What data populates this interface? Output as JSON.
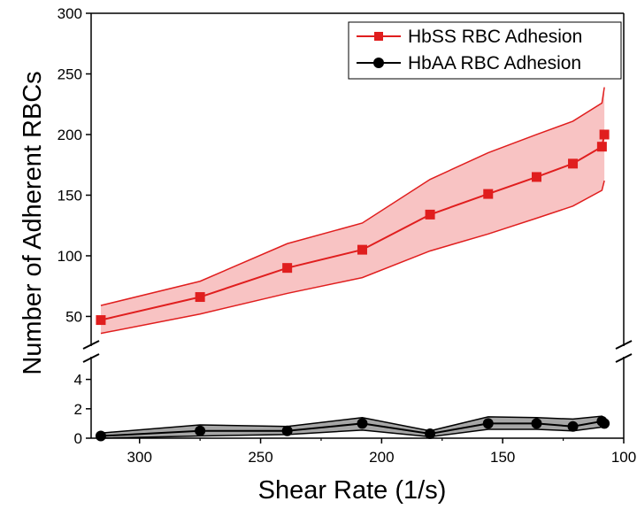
{
  "chart_data": {
    "type": "line",
    "title": "",
    "xlabel": "Shear Rate (1/s)",
    "ylabel": "Number of Adherent RBCs",
    "x_reversed": true,
    "xlim": [
      320,
      100
    ],
    "xticks": [
      300,
      250,
      200,
      150,
      100
    ],
    "y_axis_break": true,
    "upper_panel": {
      "ylim": [
        35,
        300
      ],
      "yticks": [
        50,
        100,
        150,
        200,
        250,
        300
      ]
    },
    "lower_panel": {
      "ylim": [
        0,
        5
      ],
      "yticks": [
        0,
        2,
        4
      ]
    },
    "legend_position": "top-right",
    "x": [
      316,
      275,
      239,
      208,
      180,
      156,
      136,
      121,
      109,
      108
    ],
    "series": [
      {
        "name": "HbSS RBC Adhesion",
        "color": "#e01e1e",
        "band_color": "#f7b9b9",
        "marker": "square",
        "panel": "upper",
        "values": [
          47,
          66,
          90,
          105,
          134,
          151,
          165,
          176,
          190,
          200
        ],
        "upper": [
          59,
          79,
          110,
          127,
          163,
          185,
          200,
          211,
          226,
          239
        ],
        "lower": [
          36,
          52,
          69,
          82,
          104,
          118,
          131,
          141,
          154,
          162
        ]
      },
      {
        "name": "HbAA RBC Adhesion",
        "color": "#000000",
        "band_color": "#a6a6a6",
        "marker": "circle",
        "panel": "lower",
        "values": [
          0.15,
          0.5,
          0.5,
          1.0,
          0.3,
          1.0,
          1.0,
          0.8,
          1.15,
          1.0
        ],
        "upper": [
          0.35,
          0.9,
          0.8,
          1.4,
          0.5,
          1.45,
          1.4,
          1.3,
          1.5,
          1.35
        ],
        "lower": [
          0.0,
          0.15,
          0.25,
          0.55,
          0.1,
          0.6,
          0.6,
          0.5,
          0.75,
          0.7
        ]
      }
    ]
  }
}
